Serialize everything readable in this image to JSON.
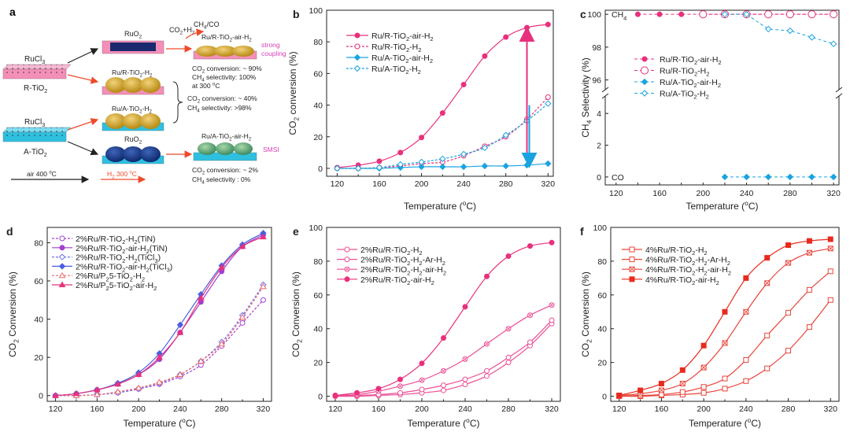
{
  "figure": {
    "panel_a": {
      "letter": "a",
      "precursor_top": "RuCl3",
      "support_top": "R-TiO2",
      "precursor_bottom": "RuCl3",
      "support_bottom": "A-TiO2",
      "ruo2_top": "RuO2",
      "ruo2_bottom": "RuO2",
      "cat_r_h2": "Ru/R-TiO2-H2",
      "cat_a_h2": "Ru/A-TiO2-H2",
      "cat_r_air_h2": "Ru/R-TiO2-air-H2",
      "cat_a_air_h2": "Ru/A-TiO2-air-H2",
      "reactants": "CO2+H2",
      "products": "CH4/CO",
      "strong_coupling_1": "strong",
      "strong_coupling_2": "coupling",
      "smsi": "SMSI",
      "result1_line1": "CO2 conversion: ~ 90%",
      "result1_line2": "CH4 selectivity: 100%",
      "result1_line3": "at 300 oC",
      "result2_line1": "CO2 conversion: ~ 40%",
      "result2_line2": "CH4 selectivity: >98%",
      "result3_line1": "CO2 conversion: ~ 2%",
      "result3_line2": "CH4 selectivity : 0%",
      "legend_air": "air 400 oC",
      "legend_h2": "H2 300 oC",
      "color_air_arrow": "#222222",
      "color_h2_arrow": "#ee4a2a",
      "color_pink_text": "#d63fb6"
    }
  },
  "chart_data": [
    {
      "panel": "b",
      "type": "line",
      "title": "",
      "xlabel": "Temperature (oC)",
      "ylabel": "CO2 conversion (%)",
      "xlim": [
        110,
        325
      ],
      "ylim": [
        -5,
        100
      ],
      "xticks": [
        "120",
        "160",
        "200",
        "240",
        "280",
        "320"
      ],
      "yticks": [
        "0",
        "20",
        "40",
        "60",
        "80",
        "100"
      ],
      "x": [
        120,
        140,
        160,
        180,
        200,
        220,
        240,
        260,
        280,
        300,
        320
      ],
      "legend": "top-left",
      "series": [
        {
          "name": "Ru/R-TiO2-air-H2",
          "color": "#e8317d",
          "dash": false,
          "marker": "circle",
          "fill": true,
          "values": [
            0.5,
            2,
            4.5,
            10,
            19.5,
            35,
            53,
            71,
            83,
            89,
            91
          ]
        },
        {
          "name": "Ru/R-TiO2-H2",
          "color": "#e8317d",
          "dash": true,
          "marker": "circle",
          "fill": false,
          "values": [
            0,
            0,
            0.5,
            1.5,
            3,
            4,
            8,
            14,
            20,
            31,
            45
          ]
        },
        {
          "name": "Ru/A-TiO2-air-H2",
          "color": "#1aa3e0",
          "dash": false,
          "marker": "diamond",
          "fill": true,
          "values": [
            0,
            0,
            0,
            0.5,
            1,
            1,
            1,
            1.5,
            1.5,
            2,
            3
          ]
        },
        {
          "name": "Ru/A-TiO2-H2",
          "color": "#1aa3e0",
          "dash": true,
          "marker": "diamond",
          "fill": false,
          "values": [
            0,
            0,
            0.5,
            2.5,
            4,
            6,
            9,
            13,
            21,
            30,
            41
          ]
        }
      ]
    },
    {
      "panel": "c",
      "type": "line",
      "title": "",
      "xlabel": "Temperature (oC)",
      "ylabel": "CH4 Selectivity (%)",
      "xlim": [
        110,
        325
      ],
      "upper_ylim": [
        95.5,
        100.2
      ],
      "upper_yticks": [
        "96",
        "98",
        "100"
      ],
      "lower_ylim": [
        -0.5,
        5
      ],
      "lower_yticks": [
        "0",
        "2",
        "4"
      ],
      "xticks": [
        "120",
        "140",
        "160",
        "180",
        "200",
        "220",
        "240",
        "260",
        "280",
        "300",
        "320"
      ],
      "xtick_labels_shown": [
        "120",
        "160",
        "200",
        "240",
        "280",
        "320"
      ],
      "annotation_top": "CH4",
      "annotation_bottom": "CO",
      "legend": "center-left",
      "series": [
        {
          "name": "Ru/R-TiO2-air-H2",
          "color": "#e8317d",
          "dash": true,
          "marker": "circle",
          "fill": true,
          "x": [
            140,
            160,
            180,
            200,
            220,
            240,
            260,
            280,
            300,
            320
          ],
          "values": [
            100,
            100,
            100,
            100,
            100,
            100,
            100,
            100,
            100,
            100
          ]
        },
        {
          "name": "Ru/R-TiO2-H2",
          "color": "#e8317d",
          "dash": true,
          "marker": "circle-large",
          "fill": false,
          "x": [
            200,
            220,
            240,
            260,
            280,
            300,
            320
          ],
          "values": [
            100,
            100,
            100,
            100,
            100,
            100,
            100
          ]
        },
        {
          "name": "Ru/A-TiO2-air-H2",
          "color": "#1aa3e0",
          "dash": true,
          "marker": "diamond",
          "fill": true,
          "axis": "lower",
          "x": [
            220,
            240,
            260,
            280,
            300,
            320
          ],
          "values": [
            0,
            0,
            0,
            0,
            0,
            0
          ]
        },
        {
          "name": "Ru/A-TiO2-H2",
          "color": "#1aa3e0",
          "dash": true,
          "marker": "diamond",
          "fill": false,
          "x": [
            220,
            240,
            260,
            280,
            300,
            320
          ],
          "values": [
            100,
            100,
            99.1,
            99.0,
            98.6,
            98.2
          ]
        }
      ]
    },
    {
      "panel": "d",
      "type": "line",
      "title": "",
      "xlabel": "Temperature (oC)",
      "ylabel": "CO2 Conversion (%)",
      "xlim": [
        112,
        328
      ],
      "ylim": [
        -3,
        88
      ],
      "xticks": [
        "120",
        "160",
        "200",
        "240",
        "280",
        "320"
      ],
      "yticks": [
        "0",
        "20",
        "40",
        "60",
        "80"
      ],
      "x": [
        120,
        140,
        160,
        180,
        200,
        220,
        240,
        260,
        280,
        300,
        320
      ],
      "legend": "top-left",
      "series": [
        {
          "name": "2%Ru/R-TiO2-H2(TiN)",
          "color": "#a23fd0",
          "dash": true,
          "marker": "circle",
          "fill": false,
          "values": [
            0,
            0,
            0.5,
            1.5,
            3.5,
            6,
            10,
            16,
            26,
            38,
            50
          ]
        },
        {
          "name": "2%Ru/R-TiO2-air-H2(TiN)",
          "color": "#a23fd0",
          "dash": false,
          "marker": "circle",
          "fill": true,
          "values": [
            0,
            1,
            3,
            6,
            11,
            19,
            33,
            49,
            65,
            78,
            84
          ]
        },
        {
          "name": "2%Ru/R-TiO2-H2(TiCl3)",
          "color": "#6f6ff0",
          "dash": true,
          "marker": "diamond",
          "fill": false,
          "values": [
            0,
            0,
            0.5,
            1.5,
            3.5,
            6.5,
            11,
            18,
            28,
            42,
            58
          ]
        },
        {
          "name": "2%Ru/R-TiO2-air-H2(TiCl3)",
          "color": "#4a5fe0",
          "dash": false,
          "marker": "diamond",
          "fill": true,
          "values": [
            0,
            1,
            3,
            6.5,
            12,
            22,
            37,
            53,
            68,
            79,
            85
          ]
        },
        {
          "name": "2%Ru/P25-TiO2-H2",
          "color": "#ee6a6a",
          "dash": true,
          "marker": "triangle",
          "fill": false,
          "values": [
            0,
            0,
            0.5,
            2,
            4,
            7,
            11,
            18,
            27,
            41,
            57
          ]
        },
        {
          "name": "2%Ru/P25-TiO2-air-H2",
          "color": "#e8317d",
          "dash": false,
          "marker": "triangle",
          "fill": true,
          "values": [
            0,
            1,
            3,
            6,
            11,
            20,
            33,
            51,
            67,
            78,
            83
          ]
        }
      ]
    },
    {
      "panel": "e",
      "type": "line",
      "title": "",
      "xlabel": "Temperature (oC)",
      "ylabel": "CO2 Conversion (%)",
      "xlim": [
        112,
        328
      ],
      "ylim": [
        -3,
        100
      ],
      "xticks": [
        "120",
        "160",
        "200",
        "240",
        "280",
        "320"
      ],
      "yticks": [
        "0",
        "20",
        "40",
        "60",
        "80",
        "100"
      ],
      "x": [
        120,
        140,
        160,
        180,
        200,
        220,
        240,
        260,
        280,
        300,
        320
      ],
      "legend": "top-left",
      "series": [
        {
          "name": "2%Ru/R-TiO2-H2",
          "color": "#ec4f96",
          "dash": false,
          "marker": "circle",
          "fill": false,
          "values": [
            0,
            0,
            0.5,
            1,
            2,
            3.5,
            7,
            12,
            20,
            30,
            43
          ]
        },
        {
          "name": "2%Ru/R-TiO2-H2-Ar-H2",
          "color": "#ec4f96",
          "dash": false,
          "marker": "circle",
          "fill": false,
          "values": [
            0,
            0.5,
            1,
            2,
            4,
            6.5,
            10,
            15,
            23,
            32,
            45
          ]
        },
        {
          "name": "2%Ru/R-TiO2-H2-air-H2",
          "color": "#ec4f96",
          "dash": false,
          "marker": "cross",
          "fill": false,
          "values": [
            0.5,
            1,
            3,
            6,
            9.5,
            15,
            22,
            31,
            40,
            48,
            54
          ]
        },
        {
          "name": "2%Ru/R-TiO2-air-H2",
          "color": "#e8317d",
          "dash": false,
          "marker": "circle",
          "fill": true,
          "values": [
            0.5,
            2,
            4.5,
            10,
            19.5,
            34.5,
            53,
            71,
            83,
            89,
            91
          ]
        }
      ]
    },
    {
      "panel": "f",
      "type": "line",
      "title": "",
      "xlabel": "Temperature (oC)",
      "ylabel": "CO2 Conversion (%)",
      "xlim": [
        112,
        328
      ],
      "ylim": [
        -3,
        100
      ],
      "xticks": [
        "120",
        "160",
        "200",
        "240",
        "280",
        "320"
      ],
      "yticks": [
        "0",
        "20",
        "40",
        "60",
        "80",
        "100"
      ],
      "x": [
        120,
        140,
        160,
        180,
        200,
        220,
        240,
        260,
        280,
        300,
        320
      ],
      "legend": "top-left",
      "series": [
        {
          "name": "4%Ru/R-TiO2-H2",
          "color": "#e8453a",
          "dash": false,
          "marker": "square",
          "fill": false,
          "values": [
            0,
            0,
            0.5,
            1,
            2,
            4.5,
            9,
            16.5,
            27,
            41,
            57
          ]
        },
        {
          "name": "4%Ru/R-TiO2-H2-Ar-H2",
          "color": "#e8453a",
          "dash": false,
          "marker": "square",
          "fill": false,
          "values": [
            0,
            0.5,
            1,
            2.5,
            5.5,
            10.5,
            21.5,
            36,
            49.5,
            63,
            74
          ]
        },
        {
          "name": "4%Ru/R-TiO2-H2-air-H2",
          "color": "#e8453a",
          "dash": false,
          "marker": "square-x",
          "fill": false,
          "values": [
            0.5,
            1.5,
            3.5,
            7.5,
            17,
            31.5,
            50,
            67,
            79,
            85,
            87.5
          ]
        },
        {
          "name": "4%Ru/R-TiO2-air-H2",
          "color": "#e82a1e",
          "dash": false,
          "marker": "square",
          "fill": true,
          "values": [
            0.5,
            3.5,
            7.5,
            15.5,
            30,
            50,
            70,
            82,
            89.5,
            92,
            93
          ]
        }
      ]
    }
  ]
}
